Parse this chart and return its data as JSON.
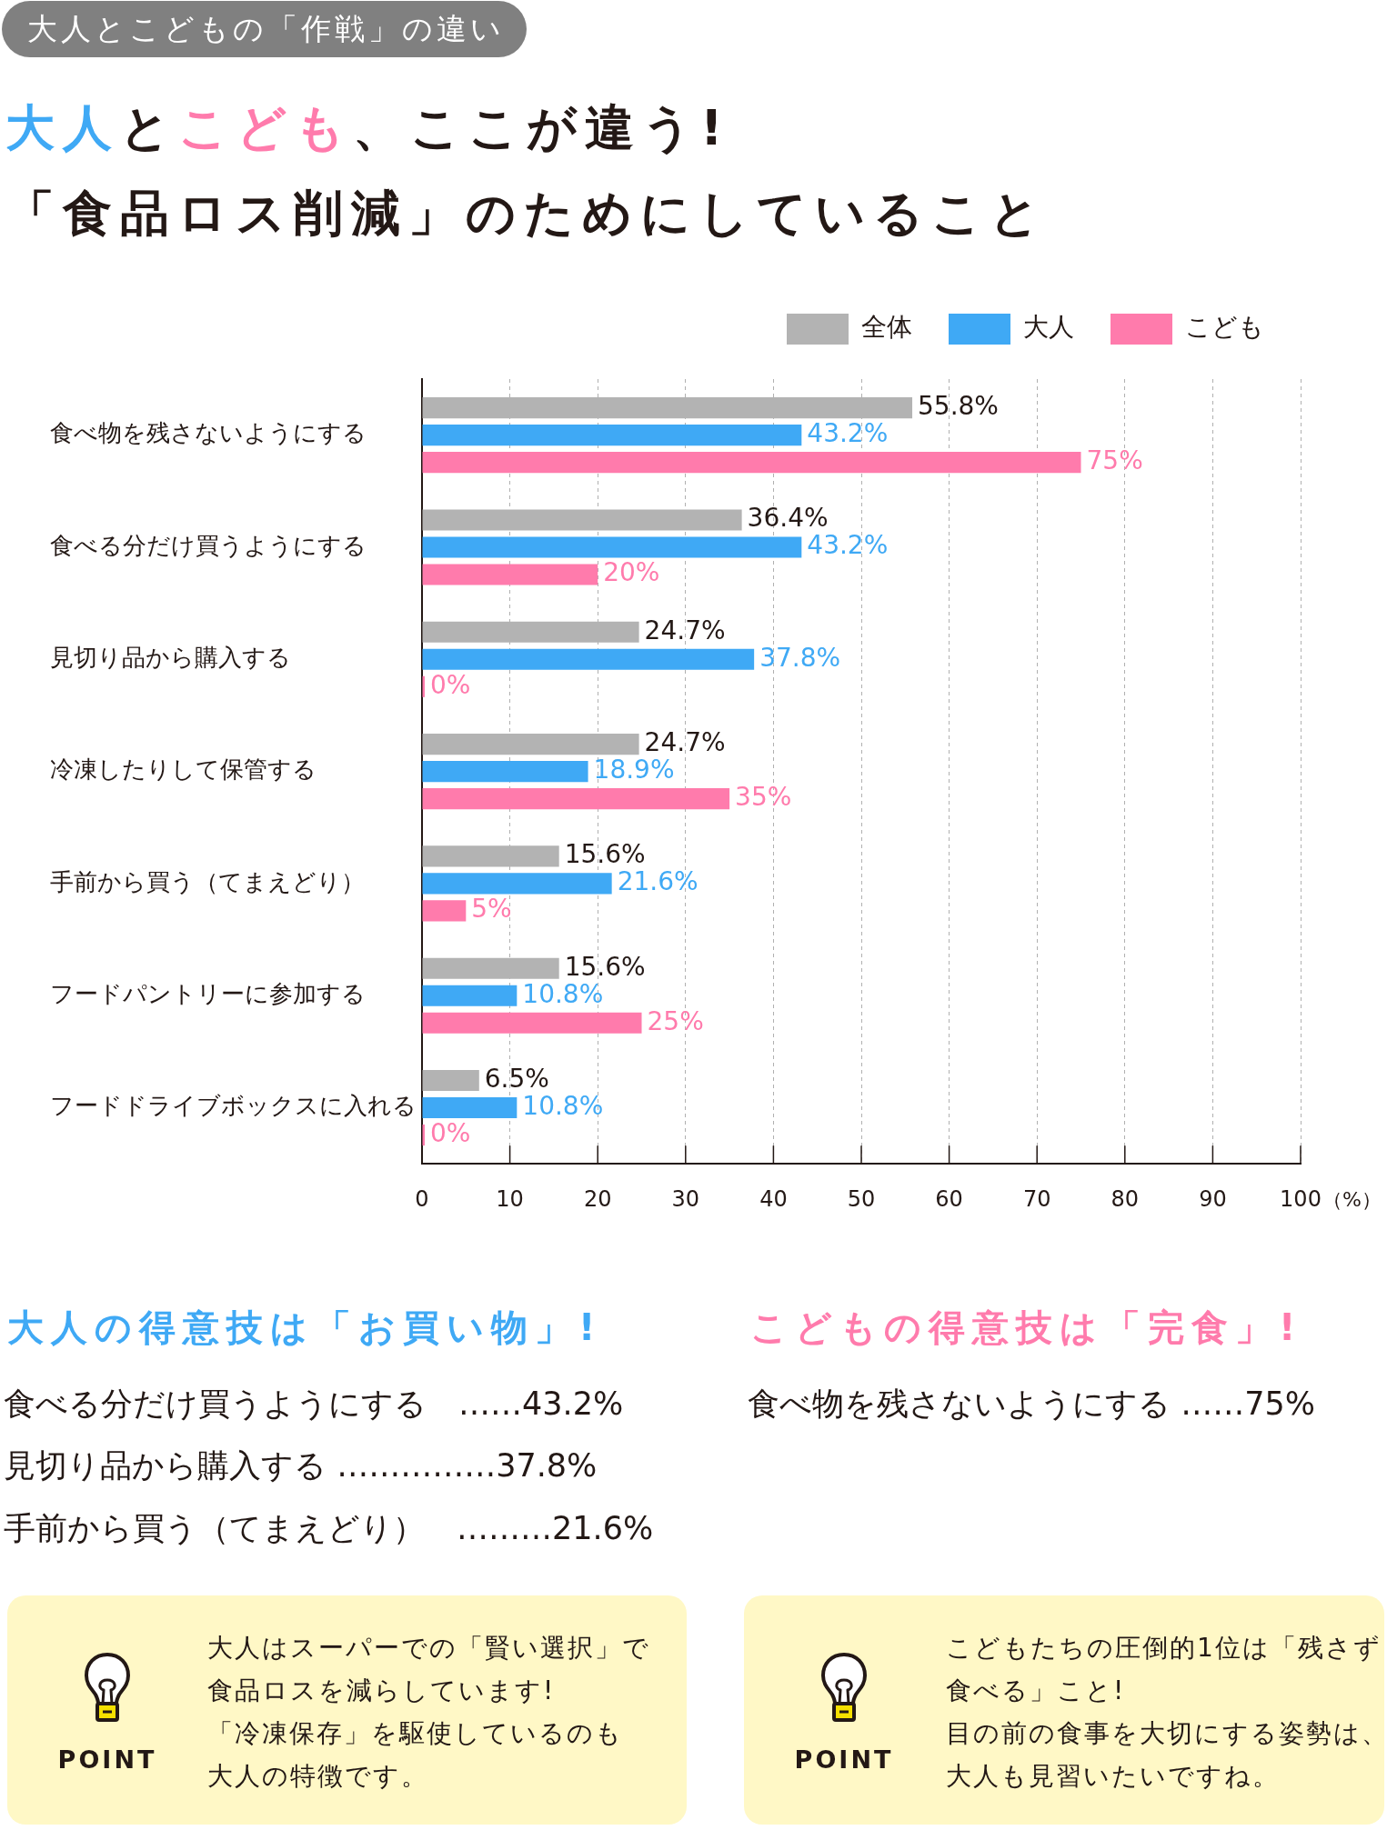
{
  "chart_data": {
    "type": "bar",
    "orientation": "horizontal",
    "subtitle": "大人とこどもの「作戦」の違い",
    "title": "大人とこども、ここが違う!\n「食品ロス削減」のためにしていること",
    "categories": [
      "食べ物を残さないようにする",
      "食べる分だけ買うようにする",
      "見切り品から購入する",
      "冷凍したりして保管する",
      "手前から買う（てまえどり）",
      "フードパントリーに参加する",
      "フードドライブボックスに入れる"
    ],
    "series": [
      {
        "name": "全体",
        "color": "#b3b3b3",
        "values": [
          55.8,
          36.4,
          24.7,
          24.7,
          15.6,
          15.6,
          6.5
        ],
        "value_labels": [
          "55.8%",
          "36.4%",
          "24.7%",
          "24.7%",
          "15.6%",
          "15.6%",
          "6.5%"
        ]
      },
      {
        "name": "大人",
        "color": "#3fa9f5",
        "values": [
          43.2,
          43.2,
          37.8,
          18.9,
          21.6,
          10.8,
          10.8
        ],
        "value_labels": [
          "43.2%",
          "43.2%",
          "37.8%",
          "18.9%",
          "21.6%",
          "10.8%",
          "10.8%"
        ]
      },
      {
        "name": "こども",
        "color": "#ff7bac",
        "values": [
          75,
          20,
          0,
          35,
          5,
          25,
          0
        ],
        "value_labels": [
          "75%",
          "20%",
          "0%",
          "35%",
          "5%",
          "25%",
          "0%"
        ]
      }
    ],
    "xlim": [
      0,
      100
    ],
    "xticks": [
      0,
      10,
      20,
      30,
      40,
      50,
      60,
      70,
      80,
      90,
      100
    ],
    "xlabel": "（%）",
    "grid": "x",
    "legend": "top right",
    "annotations": [
      "大人の得意技は「お買い物」!",
      "食べる分だけ買うようにする　……43.2%",
      "見切り品から購入する ……………37.8%",
      "手前から買う（てまえどり）　………21.6%",
      "POINT",
      "大人はスーパーでの「賢い選択」で食品ロスを減らしています!「冷凍保存」を駆使しているのも大人の特徴です。",
      "こどもの得意技は「完食」!",
      "食べ物を残さないようにする ……75%",
      "POINT",
      "こどもたちの圧倒的1位は「残さず食べる」こと!目の前の食事を大切にする姿勢は、大人も見習いたいですね。"
    ]
  }
}
